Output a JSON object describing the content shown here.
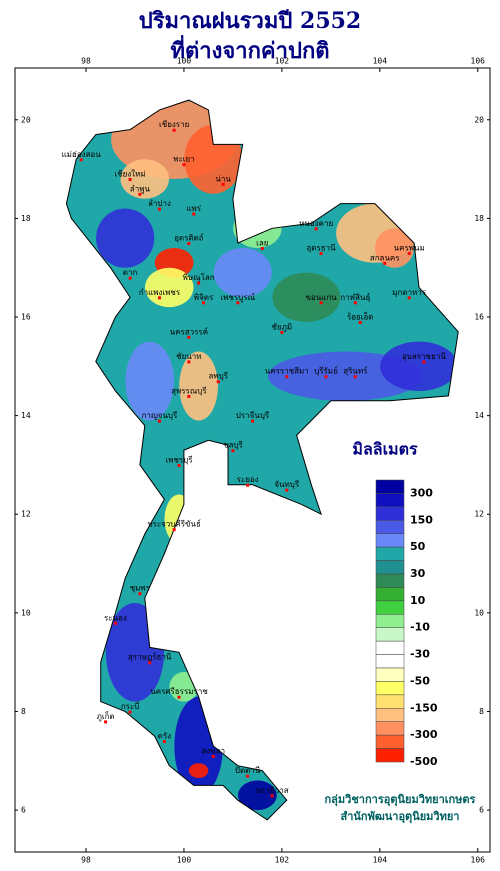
{
  "title": [
    "ปริมาณฝนรวมปี  2552",
    "ที่ต่างจากค่าปกติ"
  ],
  "map": {
    "xlim": [
      96.55,
      106.25
    ],
    "ylim": [
      5.15,
      21.05
    ],
    "xticks": [
      98,
      100,
      102,
      104,
      106
    ],
    "yticks": [
      6,
      8,
      10,
      12,
      14,
      16,
      18,
      20
    ],
    "places": [
      "เชียงราย",
      "แม่ฮ่องสอน",
      "พะเยา",
      "เชียงใหม่",
      "ลำพูน",
      "น่าน",
      "แพร่",
      "ลำปาง",
      "ตาก",
      "อุตรดิตถ์",
      "พิษณุโลก",
      "กำแพงเพชร",
      "พิจิตร",
      "เพชรบูรณ์",
      "เลย",
      "หนองคาย",
      "อุดรธานี",
      "สกลนคร",
      "นครพนม",
      "มุกดาหาร",
      "ขอนแก่น",
      "กาฬสินธุ์",
      "ชัยภูมิ",
      "นครสวรรค์",
      "ชัยนาท",
      "ลพบุรี",
      "สุพรรณบุรี",
      "กาญจนบุรี",
      "นครราชสีมา",
      "ร้อยเอ็ด",
      "อุบลราชธานี",
      "บุรีรัมย์",
      "สุรินทร์",
      "ปราจีนบุรี",
      "ชลบุรี",
      "ระยอง",
      "จันทบุรี",
      "เพชรบุรี",
      "ประจวบคีรีขันธ์",
      "ชุมพร",
      "ระนอง",
      "สุราษฎร์ธานี",
      "นครศรีธรรมราช",
      "กระบี่",
      "ภูเก็ต",
      "ตรัง",
      "สงขลา",
      "ปัตตานี",
      "นราธิวาส"
    ]
  },
  "legend": {
    "title": "มิลลิเมตร",
    "labels": [
      300,
      150,
      50,
      30,
      10,
      -10,
      -30,
      -50,
      -150,
      -300,
      -500
    ],
    "colors": [
      "#0000a0",
      "#1010c0",
      "#3030d8",
      "#4a5ae6",
      "#6a88f8",
      "#20a8a8",
      "#209090",
      "#2e8b57",
      "#34b034",
      "#40d040",
      "#90ee90",
      "#c8f8c8",
      "#ffffff",
      "#ffffff",
      "#ffffc0",
      "#ffff66",
      "#ffe070",
      "#ffc080",
      "#ff9060",
      "#ff6030",
      "#ff2000"
    ]
  },
  "credits": [
    "กลุ่มวิชาการอุตุนิยมวิทยาเกษตร",
    "สำนักพัฒนาอุตุนิยมวิทยา"
  ]
}
